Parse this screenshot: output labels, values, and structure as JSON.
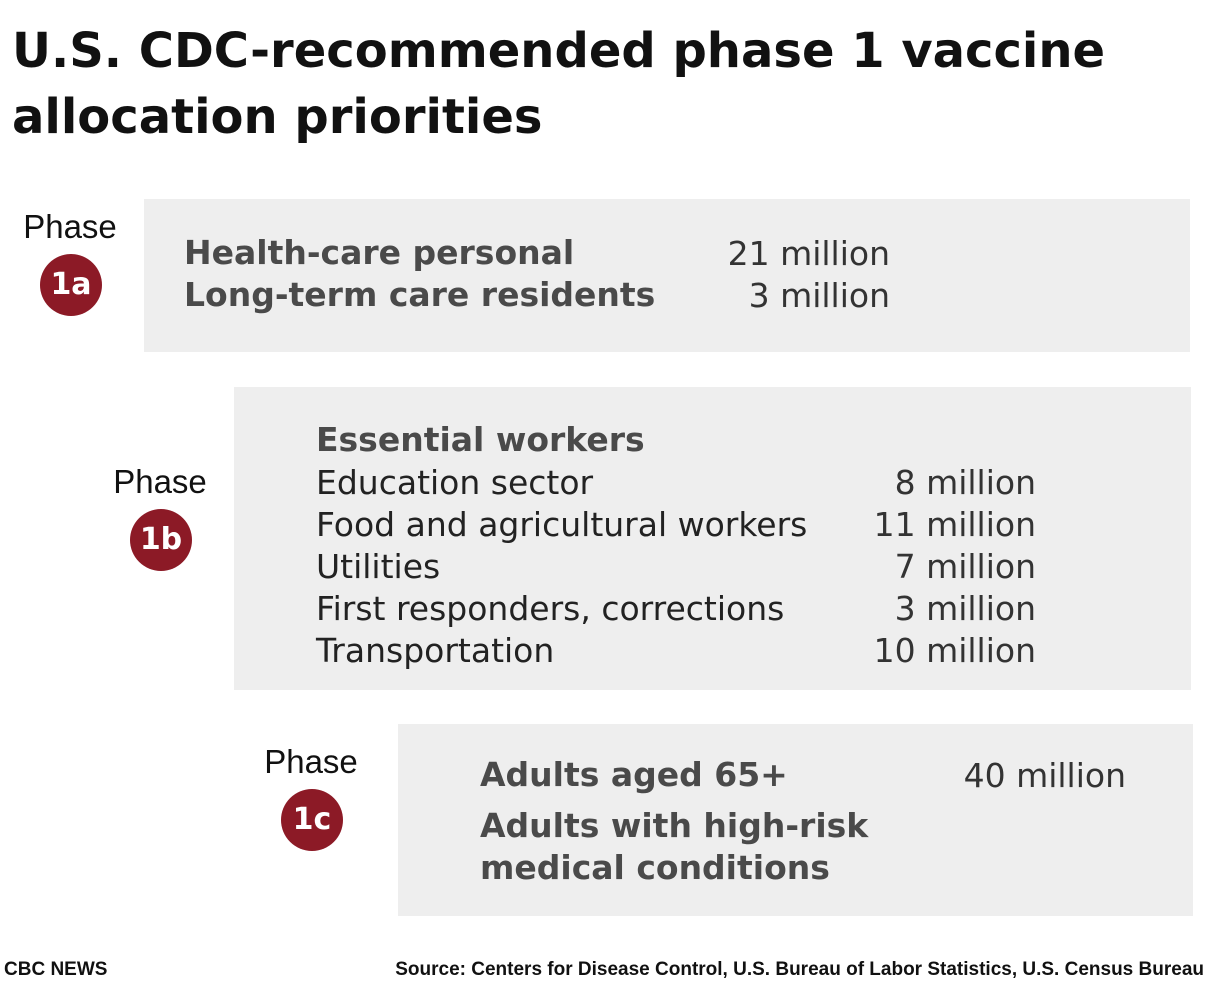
{
  "title": "U.S. CDC-recommended phase 1 vaccine allocation priorities",
  "colors": {
    "badge": "#8c1a26",
    "panel": "#eeeeee"
  },
  "phases": [
    {
      "label": "Phase",
      "badge": "1a",
      "rows": [
        {
          "text": "Health-care personal",
          "value": "21 million"
        },
        {
          "text": "Long-term care residents",
          "value": "3 million"
        }
      ]
    },
    {
      "label": "Phase",
      "badge": "1b",
      "heading": "Essential workers",
      "rows": [
        {
          "text": "Education sector",
          "value": "8 million"
        },
        {
          "text": "Food and agricultural workers",
          "value": "11 million"
        },
        {
          "text": "Utilities",
          "value": "7 million"
        },
        {
          "text": "First responders, corrections",
          "value": "3 million"
        },
        {
          "text": "Transportation",
          "value": "10 million"
        }
      ]
    },
    {
      "label": "Phase",
      "badge": "1c",
      "rows": [
        {
          "text": "Adults aged 65+",
          "value": "40 million"
        },
        {
          "text": "Adults with high-risk",
          "value": ""
        },
        {
          "text": "medical conditions",
          "value": ""
        }
      ]
    }
  ],
  "footer": {
    "credit": "CBC NEWS",
    "source": "Source: Centers for Disease Control, U.S. Bureau of Labor Statistics, U.S. Census Bureau"
  }
}
